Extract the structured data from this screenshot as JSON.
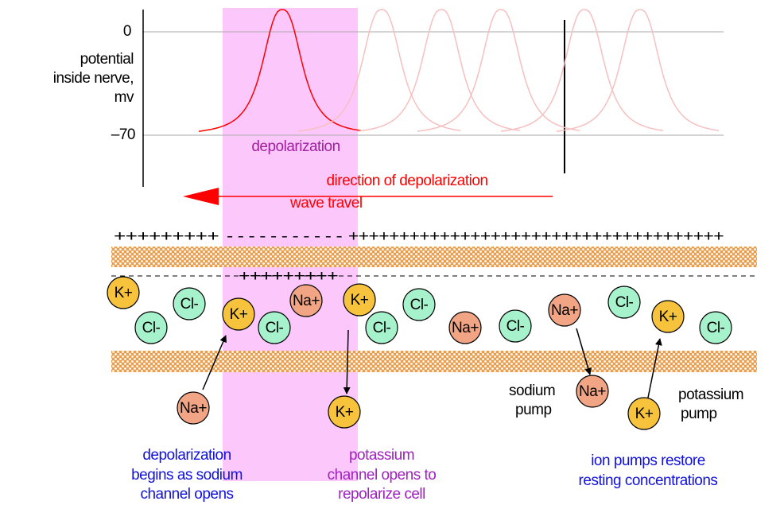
{
  "axis": {
    "zero": "0",
    "minus70": "–70",
    "label": [
      "potential",
      "inside nerve,",
      "mv"
    ]
  },
  "depolarization": "depolarization",
  "direction": [
    "direction of depolarization",
    "wave travel"
  ],
  "charges": {
    "outer": [
      "+++++++++",
      "- - - - - - - - - - -",
      "+++++++++++++++++++++++++++++++++++++"
    ],
    "inner": "+++++++++"
  },
  "ion_colors": {
    "K+": "#f7c33c",
    "Cl-": "#a6f2cc",
    "Na+": "#f2a585"
  },
  "ions": [
    "K+",
    "Cl-",
    "Cl-",
    "K+",
    "Cl-",
    "Na+",
    "K+",
    "Cl-",
    "Cl-",
    "Na+",
    "Cl-",
    "Na+",
    "Cl-",
    "K+",
    "Cl-",
    "Na+",
    "K+",
    "Na+",
    "K+"
  ],
  "pumps": [
    [
      "sodium",
      "pump"
    ],
    [
      "potassium",
      "pump"
    ]
  ],
  "captions": [
    [
      "depolarization",
      "begins as sodium",
      "channel opens"
    ],
    [
      "potassium",
      "channel opens to",
      "repolarize cell"
    ],
    [
      "ion pumps restore",
      "resting concentrations"
    ]
  ]
}
